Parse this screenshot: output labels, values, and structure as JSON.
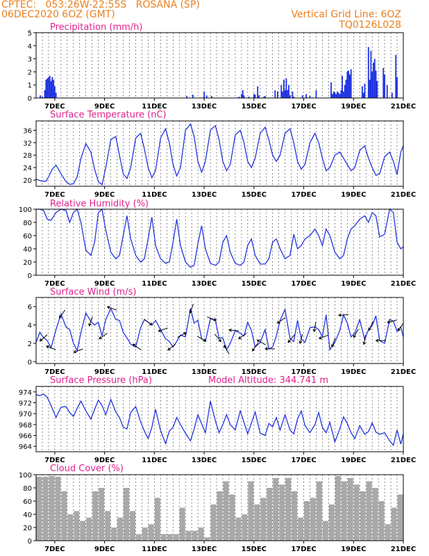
{
  "header": {
    "line1_left": "CPTEC:   053:26W-22:55S   ROSANA (SP)",
    "line2_left": "06DEC2020 6OZ (GMT)",
    "line1_right": "Vertical Grid Line: 6OZ",
    "line2_right": "TQ0126L028"
  },
  "colors": {
    "header_text": "#E8801E",
    "panel_title": "#E0208C",
    "series_line": "#2233DD",
    "precip_bar": "#1A2FE0",
    "cloud_fill": "#A9A9A9",
    "axis": "#000000"
  },
  "x_axis": {
    "ticks": [
      "7DEC",
      "9DEC",
      "11DEC",
      "13DEC",
      "15DEC",
      "17DEC",
      "19DEC",
      "21DEC"
    ],
    "tick_days": [
      7,
      9,
      11,
      13,
      15,
      17,
      19,
      21
    ],
    "range_days": [
      6.25,
      21
    ],
    "vertical_grid": "dashed, every 6 hours (6OZ)"
  },
  "chart_data": [
    {
      "type": "bar",
      "title": "Precipitation (mm/h)",
      "ylim": [
        0,
        5
      ],
      "yticks": [
        "0",
        "1",
        "2",
        "3",
        "4",
        "5"
      ],
      "x_unit": "day of December 2020",
      "x": [
        6.42,
        6.5,
        6.6,
        6.65,
        6.7,
        6.75,
        6.8,
        6.85,
        6.9,
        6.95,
        7.0,
        7.05,
        12.3,
        12.55,
        13.0,
        13.1,
        13.3,
        14.4,
        14.5,
        14.55,
        14.6,
        14.8,
        15.0,
        15.05,
        15.15,
        15.2,
        15.4,
        15.45,
        15.85,
        15.95,
        16.1,
        16.15,
        16.2,
        16.25,
        16.3,
        16.35,
        16.4,
        16.45,
        16.55,
        16.6,
        16.95,
        17.1,
        17.25,
        17.5,
        18.1,
        18.15,
        18.2,
        18.25,
        18.3,
        18.35,
        18.4,
        18.45,
        18.5,
        18.55,
        18.6,
        18.65,
        18.7,
        18.75,
        18.8,
        18.85,
        18.9,
        19.35,
        19.4,
        19.45,
        19.6,
        19.65,
        19.7,
        19.75,
        19.8,
        19.85,
        19.9,
        19.95,
        20.2,
        20.25,
        20.35,
        20.55,
        20.7,
        20.75
      ],
      "values": [
        0.2,
        0.1,
        0.6,
        1.4,
        1.5,
        1.6,
        1.7,
        1.3,
        1.6,
        1.4,
        0.9,
        0.4,
        0.15,
        0.25,
        0.5,
        0.2,
        0.15,
        0.1,
        0.3,
        0.6,
        0.2,
        0.1,
        0.3,
        0.25,
        0.9,
        0.2,
        0.1,
        0.15,
        0.6,
        0.5,
        1.0,
        0.5,
        1.4,
        0.6,
        1.5,
        0.6,
        1.0,
        0.2,
        0.5,
        0.1,
        0.2,
        0.3,
        0.15,
        0.6,
        1.2,
        0.3,
        0.5,
        0.4,
        0.3,
        0.5,
        0.4,
        0.3,
        0.6,
        1.7,
        0.5,
        1.0,
        1.4,
        2.0,
        2.1,
        1.8,
        2.2,
        0.9,
        0.4,
        1.1,
        3.9,
        1.4,
        3.6,
        2.0,
        2.7,
        3.0,
        2.1,
        1.3,
        2.3,
        1.8,
        1.0,
        0.4,
        3.3,
        1.6
      ]
    },
    {
      "type": "line",
      "title": "Surface Temperature (nC)",
      "ylim": [
        18,
        39
      ],
      "yticks": [
        "20",
        "24",
        "28",
        "32",
        "36"
      ],
      "x_unit": "day of December 2020",
      "x": [
        6.25,
        6.4,
        6.55,
        6.65,
        6.75,
        6.9,
        7.05,
        7.25,
        7.45,
        7.6,
        7.75,
        7.9,
        8.05,
        8.25,
        8.45,
        8.6,
        8.75,
        8.9,
        9.05,
        9.25,
        9.45,
        9.6,
        9.75,
        9.9,
        10.05,
        10.25,
        10.45,
        10.6,
        10.75,
        10.9,
        11.05,
        11.25,
        11.45,
        11.6,
        11.75,
        11.9,
        12.05,
        12.25,
        12.45,
        12.6,
        12.75,
        12.9,
        13.05,
        13.25,
        13.45,
        13.6,
        13.75,
        13.9,
        14.05,
        14.25,
        14.45,
        14.6,
        14.75,
        14.9,
        15.05,
        15.25,
        15.45,
        15.6,
        15.75,
        15.9,
        16.05,
        16.25,
        16.45,
        16.6,
        16.75,
        16.9,
        17.05,
        17.25,
        17.45,
        17.6,
        17.75,
        17.9,
        18.05,
        18.25,
        18.45,
        18.6,
        18.75,
        18.9,
        19.05,
        19.25,
        19.45,
        19.6,
        19.75,
        19.9,
        20.05,
        20.25,
        20.45,
        20.6,
        20.75,
        20.9,
        21.0
      ],
      "values": [
        20.3,
        19.8,
        19.6,
        19.6,
        21,
        23.5,
        24.8,
        22,
        19.5,
        18.6,
        18.8,
        21,
        27,
        31.7,
        29,
        23.5,
        19.5,
        18.5,
        24,
        33,
        34,
        28,
        22,
        20.5,
        24,
        33.5,
        35,
        30,
        24,
        20.8,
        23,
        33.5,
        36.5,
        32,
        25,
        21.3,
        24,
        36,
        38,
        34,
        26,
        22.5,
        26,
        36,
        37.5,
        33,
        26,
        23,
        25,
        34.5,
        36,
        32,
        26,
        24,
        27,
        35,
        37,
        33,
        28,
        26,
        28,
        35,
        36.5,
        32,
        26,
        23.5,
        25,
        32,
        35,
        32,
        27,
        23,
        24,
        28,
        29,
        27,
        25,
        23,
        24,
        29.5,
        31,
        27,
        24,
        21.5,
        22,
        27.5,
        29,
        26,
        21.7,
        29,
        31
      ],
      "xlabel": "",
      "ylabel": ""
    },
    {
      "type": "line",
      "title": "Relative Humidity (%)",
      "ylim": [
        0,
        100
      ],
      "yticks": [
        "0",
        "20",
        "40",
        "60",
        "80",
        "100"
      ],
      "x_unit": "day of December 2020",
      "x": [
        6.25,
        6.4,
        6.55,
        6.7,
        6.85,
        7.05,
        7.25,
        7.45,
        7.6,
        7.75,
        7.9,
        8.05,
        8.25,
        8.45,
        8.6,
        8.75,
        8.9,
        9.05,
        9.25,
        9.45,
        9.6,
        9.75,
        9.9,
        10.05,
        10.25,
        10.45,
        10.6,
        10.75,
        10.9,
        11.05,
        11.25,
        11.45,
        11.6,
        11.75,
        11.9,
        12.05,
        12.25,
        12.45,
        12.6,
        12.75,
        12.9,
        13.05,
        13.25,
        13.45,
        13.6,
        13.75,
        13.9,
        14.05,
        14.25,
        14.45,
        14.6,
        14.75,
        14.9,
        15.05,
        15.25,
        15.45,
        15.6,
        15.75,
        15.9,
        16.05,
        16.25,
        16.45,
        16.6,
        16.75,
        16.9,
        17.05,
        17.25,
        17.45,
        17.6,
        17.75,
        17.9,
        18.05,
        18.25,
        18.45,
        18.6,
        18.75,
        18.9,
        19.05,
        19.25,
        19.45,
        19.6,
        19.75,
        19.9,
        20.05,
        20.25,
        20.45,
        20.6,
        20.75,
        20.9,
        21.0
      ],
      "values": [
        100,
        100,
        98,
        85,
        83,
        95,
        100,
        98,
        80,
        95,
        100,
        80,
        38,
        30,
        50,
        95,
        100,
        68,
        35,
        25,
        30,
        60,
        90,
        55,
        30,
        20,
        25,
        55,
        88,
        45,
        25,
        18,
        20,
        50,
        85,
        45,
        20,
        12,
        15,
        48,
        75,
        40,
        18,
        15,
        20,
        50,
        60,
        35,
        18,
        15,
        20,
        45,
        55,
        30,
        17,
        17,
        25,
        50,
        55,
        40,
        25,
        30,
        62,
        40,
        45,
        55,
        60,
        70,
        60,
        45,
        70,
        60,
        35,
        25,
        30,
        55,
        70,
        75,
        85,
        90,
        80,
        95,
        90,
        58,
        62,
        100,
        95,
        50,
        40,
        43
      ],
      "xlabel": "",
      "ylabel": ""
    },
    {
      "type": "line",
      "title": "Surface Wind (m/s)",
      "ylim": [
        -0.2,
        7
      ],
      "yticks": [
        "0",
        "2",
        "4",
        "6"
      ],
      "x_unit": "day of December 2020",
      "x": [
        6.25,
        6.4,
        6.55,
        6.7,
        6.85,
        7.05,
        7.25,
        7.45,
        7.6,
        7.75,
        7.9,
        8.05,
        8.25,
        8.45,
        8.6,
        8.75,
        8.9,
        9.05,
        9.25,
        9.45,
        9.6,
        9.75,
        9.9,
        10.05,
        10.25,
        10.45,
        10.6,
        10.75,
        10.9,
        11.05,
        11.25,
        11.45,
        11.6,
        11.75,
        11.9,
        12.05,
        12.25,
        12.45,
        12.6,
        12.75,
        12.9,
        13.05,
        13.25,
        13.45,
        13.6,
        13.75,
        13.9,
        14.05,
        14.25,
        14.45,
        14.6,
        14.75,
        14.9,
        15.05,
        15.25,
        15.45,
        15.6,
        15.75,
        15.9,
        16.05,
        16.25,
        16.45,
        16.6,
        16.75,
        16.9,
        17.05,
        17.25,
        17.45,
        17.6,
        17.75,
        17.9,
        18.05,
        18.25,
        18.45,
        18.6,
        18.75,
        18.9,
        19.05,
        19.25,
        19.45,
        19.6,
        19.75,
        19.9,
        20.05,
        20.25,
        20.45,
        20.6,
        20.75,
        20.9,
        21.0
      ],
      "values": [
        2.1,
        3.2,
        2.6,
        2.3,
        1.5,
        3.5,
        5.2,
        3.8,
        3.5,
        2.0,
        1.2,
        3.2,
        5.3,
        4.4,
        4.0,
        4.3,
        2.8,
        4.6,
        5.8,
        4.6,
        4.5,
        3.2,
        2.6,
        1.9,
        1.6,
        3.7,
        4.6,
        4.3,
        4.0,
        4.5,
        3.5,
        2.5,
        2.2,
        1.6,
        2.2,
        2.9,
        2.7,
        5.8,
        4.2,
        4.5,
        2.5,
        2.2,
        4.7,
        4.5,
        2.6,
        2.6,
        1.3,
        2.0,
        3.4,
        3.1,
        2.8,
        4.3,
        3.4,
        1.6,
        2.1,
        3.5,
        1.4,
        1.6,
        2.8,
        4.5,
        5.7,
        2.5,
        2.2,
        4.5,
        2.5,
        2.1,
        3.7,
        3.8,
        3.5,
        2.7,
        5.1,
        1.3,
        2.1,
        3.4,
        5.1,
        4.2,
        2.7,
        3.1,
        4.6,
        2.4,
        3.5,
        3.9,
        5.0,
        2.3,
        2.0,
        4.6,
        4.4,
        3.3,
        3.8,
        2.7
      ],
      "xlabel": "",
      "ylabel": "",
      "arrows_x_days": [
        6.55,
        6.85,
        7.3,
        7.95,
        8.45,
        8.95,
        9.3,
        10.3,
        10.75,
        11.35,
        11.7,
        12.1,
        12.5,
        12.9,
        13.3,
        13.55,
        13.9,
        14.2,
        14.55,
        15.05,
        15.3,
        15.65,
        16.1,
        16.5,
        16.9,
        17.45,
        17.8,
        18.2,
        18.6,
        19.1,
        19.45,
        19.7,
        20.1,
        20.55,
        20.9
      ],
      "arrows_dir_deg": [
        220,
        160,
        235,
        200,
        250,
        215,
        160,
        145,
        325,
        200,
        220,
        30,
        250,
        330,
        340,
        310,
        120,
        175,
        215,
        235,
        150,
        180,
        215,
        230,
        255,
        260,
        200,
        250,
        185,
        240,
        260,
        245,
        180,
        195,
        235
      ]
    },
    {
      "type": "line",
      "title": "Surface Pressure (hPa)",
      "annotation": "Model Altitude: 344.741 m",
      "ylim": [
        963,
        975
      ],
      "yticks": [
        "964",
        "966",
        "968",
        "970",
        "972",
        "974"
      ],
      "x_unit": "day of December 2020",
      "x": [
        6.25,
        6.4,
        6.55,
        6.7,
        6.85,
        7.05,
        7.25,
        7.45,
        7.6,
        7.75,
        7.9,
        8.05,
        8.25,
        8.45,
        8.6,
        8.75,
        8.9,
        9.05,
        9.25,
        9.45,
        9.6,
        9.75,
        9.9,
        10.05,
        10.25,
        10.45,
        10.6,
        10.75,
        10.9,
        11.05,
        11.25,
        11.45,
        11.6,
        11.75,
        11.9,
        12.05,
        12.25,
        12.45,
        12.6,
        12.75,
        12.9,
        13.05,
        13.25,
        13.45,
        13.6,
        13.75,
        13.9,
        14.05,
        14.25,
        14.45,
        14.6,
        14.75,
        14.9,
        15.05,
        15.25,
        15.45,
        15.6,
        15.75,
        15.9,
        16.05,
        16.25,
        16.45,
        16.6,
        16.75,
        16.9,
        17.05,
        17.25,
        17.45,
        17.6,
        17.75,
        17.9,
        18.05,
        18.25,
        18.45,
        18.6,
        18.75,
        18.9,
        19.05,
        19.25,
        19.45,
        19.6,
        19.75,
        19.9,
        20.05,
        20.25,
        20.45,
        20.6,
        20.75,
        20.9,
        21.0
      ],
      "values": [
        973.5,
        973.3,
        973.6,
        973.0,
        971.5,
        969.3,
        971.2,
        971.3,
        970.2,
        969.5,
        971.0,
        972.3,
        970.5,
        969.0,
        970.8,
        972.5,
        971.5,
        969.8,
        972.6,
        970.3,
        969.3,
        967.5,
        967.2,
        970.2,
        971.3,
        968.5,
        966.8,
        965.4,
        967.5,
        970.8,
        966.9,
        964.5,
        966.8,
        967.5,
        969.3,
        968.0,
        966.4,
        965.0,
        967.2,
        969.8,
        968.1,
        966.5,
        972.3,
        968.7,
        966.5,
        968.0,
        969.8,
        968.0,
        967.0,
        970.5,
        968.4,
        966.3,
        968.3,
        970.3,
        966.4,
        966.0,
        968.2,
        967.6,
        969.3,
        967.0,
        969.8,
        967.0,
        966.3,
        969.0,
        970.5,
        967.8,
        966.5,
        968.0,
        970.2,
        967.5,
        966.5,
        968.4,
        964.8,
        967.2,
        969.4,
        968.2,
        966.5,
        965.4,
        967.8,
        966.2,
        966.7,
        968.3,
        966.6,
        966.2,
        966.5,
        965.0,
        964.2,
        967.0,
        964.4,
        966.3
      ],
      "xlabel": "",
      "ylabel": ""
    },
    {
      "type": "bar",
      "title": "Cloud Cover (%)",
      "ylim": [
        0,
        100
      ],
      "yticks": [
        "0",
        "20",
        "40",
        "60",
        "80",
        "100"
      ],
      "x_unit": "day of December 2020",
      "x": [
        6.25,
        6.5,
        6.75,
        7.0,
        7.25,
        7.5,
        7.75,
        8.0,
        8.25,
        8.5,
        8.75,
        9.0,
        9.25,
        9.5,
        9.75,
        10.0,
        10.25,
        10.5,
        10.75,
        11.0,
        11.25,
        11.5,
        11.75,
        12.0,
        12.25,
        12.5,
        12.75,
        13.0,
        13.25,
        13.5,
        13.75,
        14.0,
        14.25,
        14.5,
        14.75,
        15.0,
        15.25,
        15.5,
        15.75,
        16.0,
        16.25,
        16.5,
        16.75,
        17.0,
        17.25,
        17.5,
        17.75,
        18.0,
        18.25,
        18.5,
        18.75,
        19.0,
        19.25,
        19.5,
        19.75,
        20.0,
        20.25,
        20.5,
        20.75
      ],
      "values": [
        97,
        97,
        98,
        97,
        75,
        40,
        45,
        30,
        35,
        75,
        80,
        45,
        20,
        35,
        80,
        45,
        10,
        20,
        25,
        65,
        10,
        10,
        10,
        50,
        15,
        15,
        20,
        5,
        55,
        75,
        90,
        70,
        35,
        40,
        90,
        55,
        65,
        80,
        95,
        85,
        95,
        75,
        35,
        60,
        65,
        90,
        30,
        55,
        98,
        90,
        95,
        85,
        75,
        90,
        80,
        60,
        25,
        50,
        70
      ]
    }
  ]
}
